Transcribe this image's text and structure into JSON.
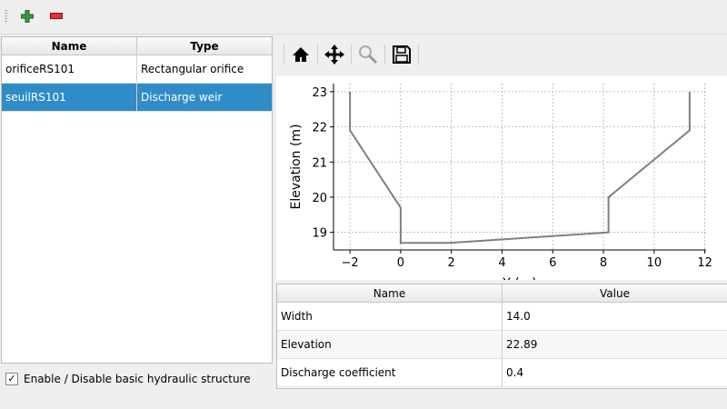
{
  "toolbar": {
    "add": "add-structure",
    "remove": "remove-structure"
  },
  "structures": {
    "headers": [
      "Name",
      "Type"
    ],
    "rows": [
      [
        "orificeRS101",
        "Rectangular orifice"
      ],
      [
        "seuilRS101",
        "Discharge weir"
      ]
    ],
    "selected_index": 1
  },
  "enable_checkbox": {
    "label": "Enable / Disable basic hydraulic structure",
    "checked": true
  },
  "plot_toolbar": [
    "home-icon",
    "pan-icon",
    "zoom-icon",
    "save-icon"
  ],
  "chart_data": {
    "type": "line",
    "xlabel": "Y (m)",
    "ylabel": "Elevation (m)",
    "xlim": [
      -2.65,
      12.05
    ],
    "ylim": [
      18.5,
      23.23
    ],
    "xticks": [
      -2,
      0,
      2,
      4,
      6,
      8,
      10,
      12
    ],
    "yticks": [
      19,
      20,
      21,
      22,
      23
    ],
    "grid": true,
    "line_color": "#808080",
    "x": [
      -2,
      -2,
      0,
      0,
      1.9,
      8.2,
      8.2,
      11.4,
      11.4
    ],
    "y": [
      23,
      21.9,
      19.7,
      18.7,
      18.7,
      19,
      20,
      21.9,
      23
    ]
  },
  "params": {
    "headers": [
      "Name",
      "Value"
    ],
    "rows": [
      [
        "Width",
        "14.0"
      ],
      [
        "Elevation",
        "22.89"
      ],
      [
        "Discharge coefficient",
        "0.4"
      ]
    ]
  }
}
